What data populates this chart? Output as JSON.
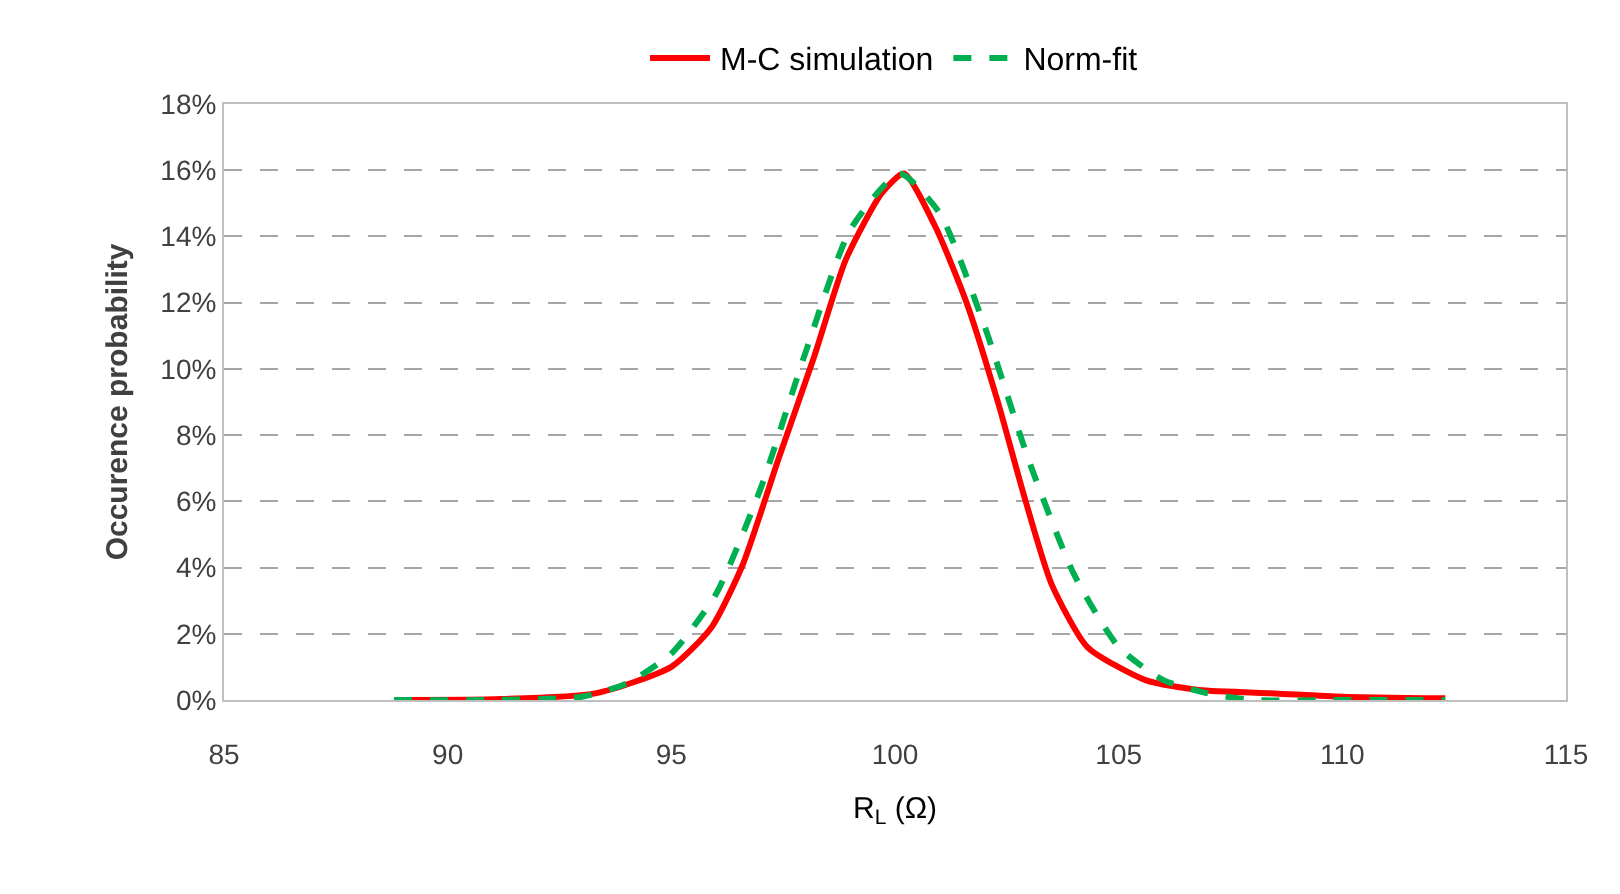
{
  "chart_data": {
    "type": "line",
    "xlabel": "R$_{L}$ (Ω)",
    "ylabel": "Occurence probability",
    "xlim": [
      85,
      115
    ],
    "xticks": [
      85,
      90,
      95,
      100,
      105,
      110,
      115
    ],
    "ylim": [
      0,
      18
    ],
    "yticks": [
      {
        "value": 0,
        "label": "0%"
      },
      {
        "value": 2,
        "label": "2%"
      },
      {
        "value": 4,
        "label": "4%"
      },
      {
        "value": 6,
        "label": "6%"
      },
      {
        "value": 8,
        "label": "8%"
      },
      {
        "value": 10,
        "label": "10%"
      },
      {
        "value": 12,
        "label": "12%"
      },
      {
        "value": 14,
        "label": "14%"
      },
      {
        "value": 16,
        "label": "16%"
      },
      {
        "value": 18,
        "label": "18%"
      }
    ],
    "grid": "y",
    "legend": "top",
    "marker": "none",
    "series": [
      {
        "name": "M-C simulation",
        "color": "#ff0000",
        "line_style": "solid",
        "x": [
          88.8,
          91,
          93.3,
          95,
          95.9,
          96.6,
          97.4,
          98.2,
          98.9,
          99.7,
          100.2,
          100.9,
          101.6,
          102.3,
          102.9,
          103.5,
          104.3,
          105.6,
          106.8,
          108.5,
          110,
          112.3
        ],
        "values": [
          0,
          0.02,
          0.2,
          1,
          2.2,
          4.1,
          7.3,
          10.4,
          13.3,
          15.3,
          15.9,
          14.3,
          12,
          9,
          6.1,
          3.5,
          1.6,
          0.6,
          0.3,
          0.2,
          0.1,
          0.05
        ]
      },
      {
        "name": "Norm-fit",
        "color": "#00b050",
        "line_style": "dashed",
        "x": [
          88.8,
          91,
          93,
          94,
          95,
          96,
          97,
          98,
          99,
          100.1,
          101,
          102,
          103,
          104,
          105,
          106,
          107,
          108,
          110,
          112.3
        ],
        "values": [
          0,
          0,
          0.1,
          0.5,
          1.4,
          3.2,
          6.4,
          10.5,
          14.2,
          15.9,
          14.7,
          11.3,
          7.2,
          3.8,
          1.6,
          0.6,
          0.2,
          0,
          0,
          0
        ]
      }
    ]
  }
}
